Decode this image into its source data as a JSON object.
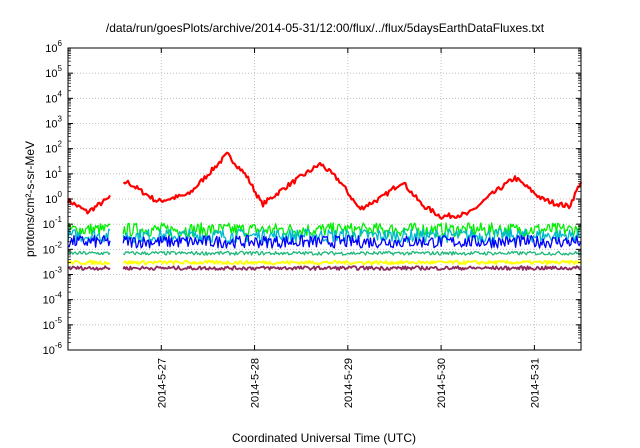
{
  "chart_data": {
    "type": "line",
    "title": "/data/run/goesPlots/archive/2014-05-31/12:00/flux/../flux/5daysEarthDataFluxes.txt",
    "xlabel": "Coordinated Universal Time (UTC)",
    "ylabel": "protons/cm²-s-sr-MeV",
    "yscale": "log",
    "ylim": [
      1e-06,
      1000000.0
    ],
    "xlim": [
      "2014-05-26 00:00",
      "2014-05-31 12:00"
    ],
    "grid": true,
    "y_ticks": [
      {
        "base": "10",
        "exp": "-6"
      },
      {
        "base": "10",
        "exp": "-5"
      },
      {
        "base": "10",
        "exp": "-4"
      },
      {
        "base": "10",
        "exp": "-3"
      },
      {
        "base": "10",
        "exp": "-2"
      },
      {
        "base": "10",
        "exp": "-1"
      },
      {
        "base": "10",
        "exp": "0"
      },
      {
        "base": "10",
        "exp": "1"
      },
      {
        "base": "10",
        "exp": "2"
      },
      {
        "base": "10",
        "exp": "3"
      },
      {
        "base": "10",
        "exp": "4"
      },
      {
        "base": "10",
        "exp": "5"
      },
      {
        "base": "10",
        "exp": "6"
      }
    ],
    "x_ticks": [
      "2014-5-27",
      "2014-5-28",
      "2014-5-29",
      "2014-5-30",
      "2014-5-31"
    ],
    "data_gap": [
      "2014-05-26 11:00",
      "2014-05-26 14:00"
    ],
    "series": [
      {
        "color": "#ff0000",
        "x": [
          "2014-05-26 00:00",
          "2014-05-26 05:00",
          "2014-05-26 11:00",
          "2014-05-26 15:00",
          "2014-05-26 23:00",
          "2014-05-27 07:00",
          "2014-05-27 17:00",
          "2014-05-27 22:00",
          "2014-05-28 02:00",
          "2014-05-28 08:00",
          "2014-05-28 17:00",
          "2014-05-28 22:00",
          "2014-05-29 03:00",
          "2014-05-29 09:00",
          "2014-05-29 14:00",
          "2014-05-29 19:00",
          "2014-05-30 00:00",
          "2014-05-30 07:00",
          "2014-05-30 13:00",
          "2014-05-30 19:00",
          "2014-05-31 02:00",
          "2014-05-31 05:00",
          "2014-05-31 09:00",
          "2014-05-31 12:00"
        ],
        "values": [
          0.9,
          0.3,
          1.2,
          5,
          0.8,
          1.5,
          60,
          8,
          0.6,
          3,
          25,
          5,
          0.4,
          1.2,
          5,
          0.6,
          0.2,
          0.25,
          1.5,
          7,
          1.0,
          0.7,
          0.5,
          5
        ]
      },
      {
        "color": "#00ee00",
        "level": 0.06
      },
      {
        "color": "#00bbcc",
        "level": 0.035
      },
      {
        "color": "#0000ff",
        "level": 0.02
      },
      {
        "color": "#1eb878",
        "level": 0.007
      },
      {
        "color": "#ffff00",
        "level": 0.003
      },
      {
        "color": "#8b2a5e",
        "level": 0.0018
      }
    ]
  }
}
